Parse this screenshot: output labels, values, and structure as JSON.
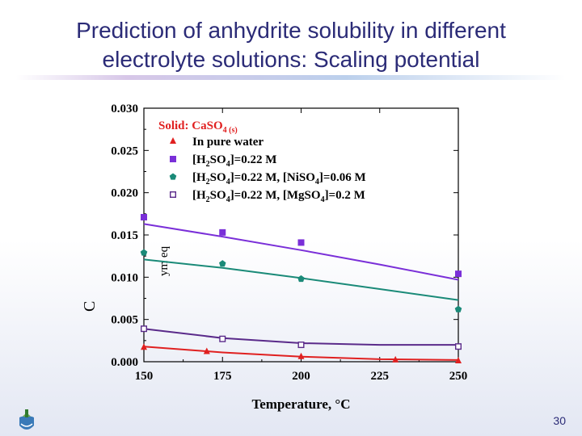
{
  "slide": {
    "title_line1": "Prediction of anhydrite solubility in different",
    "title_line2": "electrolyte solutions: Scaling potential",
    "page_number": "30",
    "logo_icon": "university-logo-icon"
  },
  "chart_data": {
    "type": "scatter",
    "xlabel": "Temperature, °C",
    "ylabel": "C",
    "ylabel_extra": "ym eq",
    "xlim": [
      150,
      250
    ],
    "ylim": [
      0.0,
      0.03
    ],
    "xticks": [
      "150",
      "175",
      "200",
      "225",
      "250"
    ],
    "yticks": [
      "0.000",
      "0.005",
      "0.010",
      "0.015",
      "0.020",
      "0.025",
      "0.030"
    ],
    "legend_title": "Solid: CaSO",
    "legend_title_sub": "4 (s)",
    "legend_position": "top-right",
    "colors": {
      "red": "#e02020",
      "purple": "#7a2fd8",
      "teal": "#1a8a78",
      "darkpurple": "#5a2a8a"
    },
    "series": [
      {
        "name": "In pure water",
        "name_parts": [
          [
            "In pure water",
            ""
          ]
        ],
        "marker": "triangle",
        "color": "#e02020",
        "points": [
          [
            150,
            0.0017
          ],
          [
            170,
            0.0012
          ],
          [
            200,
            0.0006
          ],
          [
            230,
            0.0002
          ],
          [
            250,
            0.0001
          ]
        ],
        "fit": [
          [
            150,
            0.0018
          ],
          [
            175,
            0.0011
          ],
          [
            200,
            0.0006
          ],
          [
            225,
            0.0003
          ],
          [
            250,
            0.0002
          ]
        ]
      },
      {
        "name": "[H2SO4]=0.22 M",
        "name_parts": [
          [
            "[H",
            ""
          ],
          [
            "2",
            "sub"
          ],
          [
            "SO",
            ""
          ],
          [
            "4",
            "sub"
          ],
          [
            "]=0.22 M",
            ""
          ]
        ],
        "marker": "square",
        "color": "#7a2fd8",
        "points": [
          [
            150,
            0.0171
          ],
          [
            175,
            0.0153
          ],
          [
            200,
            0.0141
          ],
          [
            250,
            0.0104
          ]
        ],
        "fit": [
          [
            150,
            0.0163
          ],
          [
            175,
            0.0148
          ],
          [
            200,
            0.0132
          ],
          [
            225,
            0.0115
          ],
          [
            250,
            0.0097
          ]
        ]
      },
      {
        "name": "[H2SO4]=0.22 M, [NiSO4]=0.06 M",
        "name_parts": [
          [
            "[H",
            ""
          ],
          [
            "2",
            "sub"
          ],
          [
            "SO",
            ""
          ],
          [
            "4",
            "sub"
          ],
          [
            "]=0.22 M, [NiSO",
            ""
          ],
          [
            "4",
            "sub"
          ],
          [
            "]=0.06 M",
            ""
          ]
        ],
        "marker": "pentagon",
        "color": "#1a8a78",
        "points": [
          [
            150,
            0.0129
          ],
          [
            175,
            0.0116
          ],
          [
            200,
            0.0098
          ],
          [
            250,
            0.0062
          ]
        ],
        "fit": [
          [
            150,
            0.0121
          ],
          [
            175,
            0.0111
          ],
          [
            200,
            0.0099
          ],
          [
            225,
            0.0086
          ],
          [
            250,
            0.0073
          ]
        ]
      },
      {
        "name": "[H2SO4]=0.22 M, [MgSO4]=0.2 M",
        "name_parts": [
          [
            "[H",
            ""
          ],
          [
            "2",
            "sub"
          ],
          [
            "SO",
            ""
          ],
          [
            "4",
            "sub"
          ],
          [
            "]=0.22 M, [MgSO",
            ""
          ],
          [
            "4",
            "sub"
          ],
          [
            "]=0.2 M",
            ""
          ]
        ],
        "marker": "hollow-square",
        "color": "#5a2a8a",
        "points": [
          [
            150,
            0.0039
          ],
          [
            175,
            0.0027
          ],
          [
            200,
            0.002
          ],
          [
            250,
            0.0018
          ]
        ],
        "fit": [
          [
            150,
            0.0039
          ],
          [
            175,
            0.0028
          ],
          [
            200,
            0.0022
          ],
          [
            225,
            0.002
          ],
          [
            250,
            0.002
          ]
        ]
      }
    ]
  }
}
